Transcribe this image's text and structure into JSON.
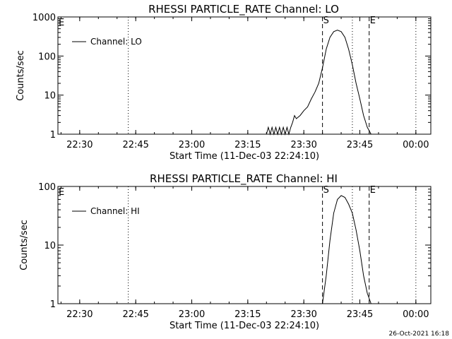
{
  "footer_date": "26-Oct-2021 16:18",
  "chart_data": [
    {
      "type": "line",
      "title": "RHESSI PARTICLE_RATE Channel: LO",
      "xlabel": "Start Time (11-Dec-03 22:24:10)",
      "ylabel": "Counts/sec",
      "yscale": "log",
      "ylim": [
        1,
        1000
      ],
      "ytick_labels": [
        "1",
        "10",
        "100",
        "1000"
      ],
      "xlim": [
        "22:24:10",
        "00:04:00"
      ],
      "xtick_labels": [
        "22:30",
        "22:45",
        "23:00",
        "23:15",
        "23:30",
        "23:45",
        "00:00"
      ],
      "legend": {
        "entries": [
          "Channel: LO"
        ],
        "position": "top-left"
      },
      "markers": [
        {
          "label": "S",
          "time": "23:35:00",
          "style": "dashed"
        },
        {
          "label": "E",
          "time": "23:47:30",
          "style": "dashed"
        },
        {
          "label": "",
          "time": "22:43:00",
          "style": "dotted"
        },
        {
          "label": "",
          "time": "23:43:00",
          "style": "dotted"
        },
        {
          "label": "",
          "time": "00:00:00",
          "style": "dotted"
        }
      ],
      "corner_marks": [
        {
          "label": "E",
          "at": "top-left"
        }
      ],
      "series": [
        {
          "name": "Channel: LO",
          "x": [
            "23:20:00",
            "23:20:30",
            "23:21:00",
            "23:21:30",
            "23:22:00",
            "23:22:30",
            "23:23:00",
            "23:23:30",
            "23:24:00",
            "23:24:30",
            "23:25:00",
            "23:25:30",
            "23:26:00",
            "23:26:30",
            "23:27:00",
            "23:27:30",
            "23:28:00",
            "23:29:00",
            "23:30:00",
            "23:31:00",
            "23:32:00",
            "23:33:00",
            "23:34:00",
            "23:35:00",
            "23:36:00",
            "23:37:00",
            "23:38:00",
            "23:39:00",
            "23:40:00",
            "23:41:00",
            "23:42:00",
            "23:43:00",
            "23:44:00",
            "23:45:00",
            "23:46:00",
            "23:47:00",
            "23:48:00"
          ],
          "values": [
            1,
            1.5,
            1,
            1.5,
            1,
            1.5,
            1,
            1.5,
            1,
            1.5,
            1,
            1.5,
            1,
            1.5,
            2,
            3,
            2.5,
            3,
            4,
            5,
            8,
            12,
            20,
            50,
            150,
            300,
            420,
            460,
            420,
            300,
            150,
            60,
            20,
            8,
            3,
            1.5,
            1
          ]
        }
      ]
    },
    {
      "type": "line",
      "title": "RHESSI PARTICLE_RATE Channel: HI",
      "xlabel": "Start Time (11-Dec-03 22:24:10)",
      "ylabel": "Counts/sec",
      "yscale": "log",
      "ylim": [
        1,
        100
      ],
      "ytick_labels": [
        "1",
        "10",
        "100"
      ],
      "xlim": [
        "22:24:10",
        "00:04:00"
      ],
      "xtick_labels": [
        "22:30",
        "22:45",
        "23:00",
        "23:15",
        "23:30",
        "23:45",
        "00:00"
      ],
      "legend": {
        "entries": [
          "Channel: HI"
        ],
        "position": "top-left"
      },
      "markers": [
        {
          "label": "S",
          "time": "23:35:00",
          "style": "dashed"
        },
        {
          "label": "E",
          "time": "23:47:30",
          "style": "dashed"
        },
        {
          "label": "",
          "time": "22:43:00",
          "style": "dotted"
        },
        {
          "label": "",
          "time": "23:43:00",
          "style": "dotted"
        },
        {
          "label": "",
          "time": "00:00:00",
          "style": "dotted"
        }
      ],
      "corner_marks": [
        {
          "label": "E",
          "at": "top-left"
        }
      ],
      "series": [
        {
          "name": "Channel: HI",
          "x": [
            "23:35:00",
            "23:36:00",
            "23:37:00",
            "23:38:00",
            "23:39:00",
            "23:40:00",
            "23:41:00",
            "23:42:00",
            "23:43:00",
            "23:44:00",
            "23:45:00",
            "23:46:00",
            "23:47:00",
            "23:48:00"
          ],
          "values": [
            1,
            3,
            12,
            35,
            60,
            70,
            65,
            50,
            35,
            18,
            8,
            3,
            1.5,
            1
          ]
        }
      ]
    }
  ]
}
